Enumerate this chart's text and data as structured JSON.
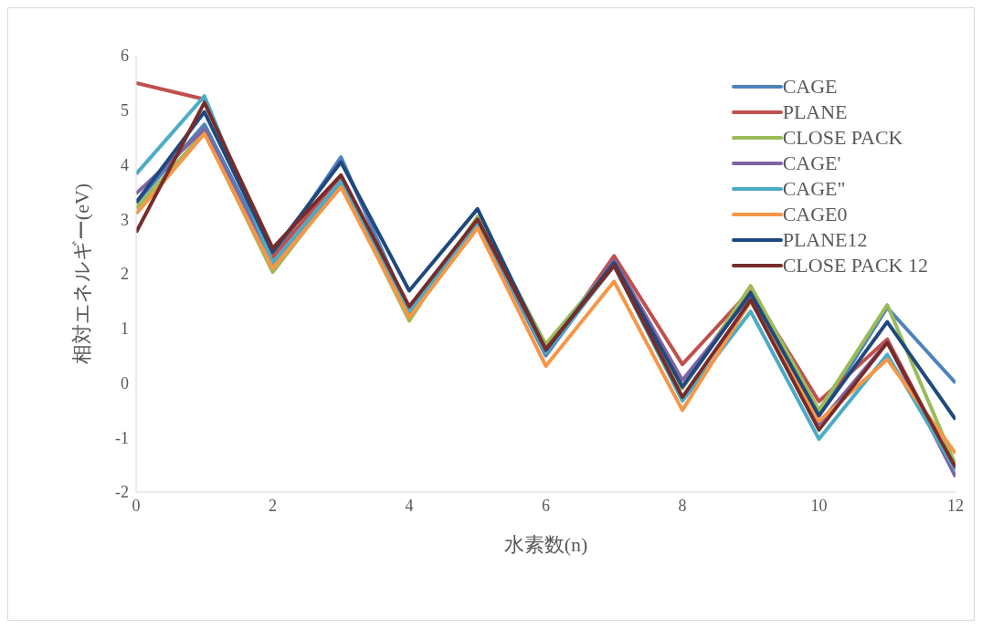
{
  "chart_data": {
    "type": "line",
    "xlabel": "水素数(n)",
    "ylabel": "相対エネルギー(eV)",
    "x": [
      0,
      1,
      2,
      3,
      4,
      5,
      6,
      7,
      8,
      9,
      10,
      11,
      12
    ],
    "xlim": [
      0,
      12
    ],
    "xticks": [
      0,
      2,
      4,
      6,
      8,
      10,
      12
    ],
    "ylim": [
      -2,
      6
    ],
    "yticks": [
      -2,
      -1,
      0,
      1,
      2,
      3,
      4,
      5,
      6
    ],
    "grid": false,
    "legend": "top right",
    "marker": "none",
    "line_style": "solid",
    "series": [
      {
        "name": "CAGE",
        "color": "#4f81bd",
        "values": [
          3.3,
          4.74,
          2.3,
          4.14,
          1.3,
          2.95,
          0.5,
          2.2,
          -0.1,
          1.7,
          -0.6,
          1.38,
          0
        ]
      },
      {
        "name": "PLANE",
        "color": "#c0504d",
        "values": [
          5.5,
          5.2,
          2.3,
          3.8,
          1.35,
          2.95,
          0.55,
          2.33,
          0.34,
          1.7,
          -0.34,
          0.8,
          -1.6
        ]
      },
      {
        "name": "CLOSE PACK",
        "color": "#9bbb59",
        "values": [
          3.2,
          4.6,
          2.03,
          3.65,
          1.14,
          3.05,
          0.71,
          2.2,
          -0.1,
          1.78,
          -0.5,
          1.43,
          -1.5
        ]
      },
      {
        "name": "CAGE'",
        "color": "#8064a2",
        "values": [
          3.47,
          4.65,
          2.15,
          3.7,
          1.3,
          2.95,
          0.55,
          2.25,
          0.05,
          1.6,
          -0.75,
          0.75,
          -1.72
        ]
      },
      {
        "name": "CAGE\"",
        "color": "#4bacc6",
        "values": [
          3.83,
          5.26,
          2.2,
          3.7,
          1.3,
          2.95,
          0.55,
          2.15,
          -0.33,
          1.31,
          -1.03,
          0.52,
          -1.6
        ]
      },
      {
        "name": "CAGE0",
        "color": "#f79646",
        "values": [
          3.1,
          4.57,
          2.1,
          3.59,
          1.2,
          2.84,
          0.31,
          1.86,
          -0.5,
          1.5,
          -0.7,
          0.43,
          -1.29
        ]
      },
      {
        "name": "PLANE12",
        "color": "#1f497d",
        "values": [
          3.31,
          4.97,
          2.4,
          4.05,
          1.69,
          3.19,
          0.6,
          2.2,
          -0.07,
          1.65,
          -0.6,
          1.12,
          -0.67
        ]
      },
      {
        "name": "CLOSE PACK 12",
        "color": "#772c2a",
        "values": [
          2.76,
          5.14,
          2.47,
          3.81,
          1.4,
          3.0,
          0.62,
          2.15,
          -0.26,
          1.52,
          -0.86,
          0.74,
          -1.55
        ]
      }
    ]
  }
}
